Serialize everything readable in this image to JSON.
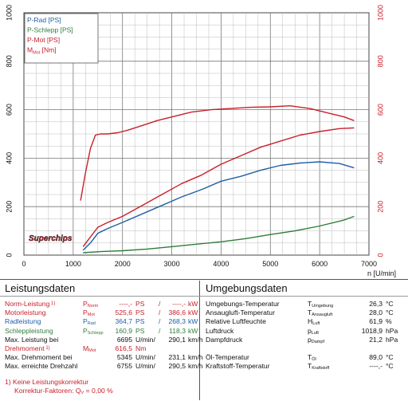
{
  "chart_data": {
    "type": "line",
    "xlabel": "n [U/min]",
    "xlim": [
      0,
      7000
    ],
    "ylim_left": [
      0,
      1000
    ],
    "ylim_right": [
      0,
      1000
    ],
    "x_ticks": [
      "0",
      "1000",
      "2000",
      "3000",
      "4000",
      "5000",
      "6000",
      "7000"
    ],
    "y_ticks": [
      "0",
      "200",
      "400",
      "600",
      "800",
      "1000"
    ],
    "grid": true,
    "legend_position": "top-left",
    "legend": [
      {
        "label": "P-Rad [PS]",
        "color": "#1f5fa6"
      },
      {
        "label": "P-Schlepp [PS]",
        "color": "#2f7d3a"
      },
      {
        "label": "P-Mot [PS]",
        "color": "#c8202a"
      },
      {
        "label": "M",
        "sub": "Mot",
        "unit": " [Nm]",
        "color": "#c8202a"
      }
    ],
    "series": [
      {
        "name": "P-Rad",
        "color": "#1f5fa6",
        "x": [
          1200,
          1350,
          1500,
          1700,
          2000,
          2400,
          2800,
          3200,
          3600,
          4000,
          4400,
          4800,
          5200,
          5600,
          6000,
          6400,
          6700
        ],
        "values": [
          20,
          50,
          90,
          110,
          135,
          170,
          205,
          240,
          270,
          305,
          325,
          350,
          370,
          380,
          385,
          378,
          360
        ]
      },
      {
        "name": "P-Schlepp",
        "color": "#2f7d3a",
        "x": [
          1200,
          1600,
          2000,
          2500,
          3000,
          3500,
          4000,
          4500,
          5000,
          5500,
          6000,
          6500,
          6700
        ],
        "values": [
          10,
          15,
          18,
          25,
          35,
          45,
          55,
          68,
          85,
          100,
          120,
          145,
          160
        ]
      },
      {
        "name": "P-Mot",
        "color": "#c8202a",
        "x": [
          1200,
          1350,
          1500,
          1700,
          2000,
          2400,
          2800,
          3200,
          3600,
          4000,
          4400,
          4800,
          5200,
          5600,
          6000,
          6400,
          6700
        ],
        "values": [
          35,
          75,
          115,
          135,
          160,
          205,
          250,
          295,
          330,
          375,
          410,
          445,
          470,
          495,
          510,
          522,
          525
        ]
      },
      {
        "name": "M_Mot",
        "color": "#c8202a",
        "x": [
          1150,
          1250,
          1350,
          1450,
          1550,
          1700,
          1900,
          2100,
          2400,
          2700,
          3000,
          3400,
          3800,
          4200,
          4600,
          5000,
          5400,
          5800,
          6200,
          6500,
          6700
        ],
        "values": [
          225,
          340,
          440,
          495,
          500,
          500,
          505,
          515,
          535,
          555,
          570,
          590,
          600,
          605,
          610,
          612,
          616,
          605,
          585,
          570,
          555
        ]
      }
    ]
  },
  "logo": {
    "text": "Superchips"
  },
  "leistung": {
    "title": "Leistungsdaten",
    "rows": [
      {
        "label": "Norm-Leistung",
        "marker": " 1)",
        "sym": "P",
        "sub": "Norm",
        "v1": "----,-",
        "u1": "PS",
        "sep": "/",
        "v2": "----,-",
        "u2": "kW",
        "color": "red"
      },
      {
        "label": "Motorleistung",
        "marker": "",
        "sym": "P",
        "sub": "Mot",
        "v1": "525,6",
        "u1": "PS",
        "sep": "/",
        "v2": "386,6",
        "u2": "kW",
        "color": "red"
      },
      {
        "label": "Radleistung",
        "marker": "",
        "sym": "P",
        "sub": "Rad",
        "v1": "364,7",
        "u1": "PS",
        "sep": "/",
        "v2": "268,3",
        "u2": "kW",
        "color": "blue"
      },
      {
        "label": "Schleppleistung",
        "marker": "",
        "sym": "P",
        "sub": "Schlepp",
        "v1": "160,9",
        "u1": "PS",
        "sep": "/",
        "v2": "118,3",
        "u2": "kW",
        "color": "green"
      },
      {
        "label": "Max. Leistung bei",
        "marker": "",
        "sym": "",
        "sub": "",
        "v1": "6695",
        "u1": "U/min/",
        "sep": "",
        "v2": "290,1",
        "u2": "km/h",
        "color": "dark"
      },
      {
        "label": "Drehmoment",
        "marker": " 1)",
        "sym": "M",
        "sub": "Mot",
        "v1": "616,5",
        "u1": "Nm",
        "sep": "",
        "v2": "",
        "u2": "",
        "color": "red"
      },
      {
        "label": "Max. Drehmoment bei",
        "marker": "",
        "sym": "",
        "sub": "",
        "v1": "5345",
        "u1": "U/min/",
        "sep": "",
        "v2": "231,1",
        "u2": "km/h",
        "color": "dark"
      },
      {
        "label": "Max. erreichte Drehzahl",
        "marker": "",
        "sym": "",
        "sub": "",
        "v1": "6755",
        "u1": "U/min/",
        "sep": "",
        "v2": "290,5",
        "u2": "km/h",
        "color": "dark"
      }
    ],
    "footnote1": "1) Keine Leistungskorrektur",
    "footnote2": "Korrektur-Faktoren:",
    "footnote2_sym": "Q",
    "footnote2_sub": "V",
    "footnote2_val": "=   0,00 %"
  },
  "umgebung": {
    "title": "Umgebungsdaten",
    "rows": [
      {
        "label": "Umgebungs-Temperatur",
        "sym": "T",
        "sub": "Umgebung",
        "val": "26,3",
        "unit": "°C"
      },
      {
        "label": "Ansaugluft-Temperatur",
        "sym": "T",
        "sub": "Ansaugluft",
        "val": "28,0",
        "unit": "°C"
      },
      {
        "label": "Relative Luftfeuchte",
        "sym": "H",
        "sub": "Luft",
        "val": "61,9",
        "unit": "%"
      },
      {
        "label": "Luftdruck",
        "sym": "p",
        "sub": "Luft",
        "val": "1018,9",
        "unit": "hPa"
      },
      {
        "label": "Dampfdruck",
        "sym": "p",
        "sub": "Dampf",
        "val": "21,2",
        "unit": "hPa"
      },
      {
        "label": "Öl-Temperatur",
        "sym": "T",
        "sub": "Öl",
        "val": "89,0",
        "unit": "°C"
      },
      {
        "label": "Kraftstoff-Temperatur",
        "sym": "T",
        "sub": "Kraftstoff",
        "val": "----,-",
        "unit": "°C"
      }
    ]
  }
}
